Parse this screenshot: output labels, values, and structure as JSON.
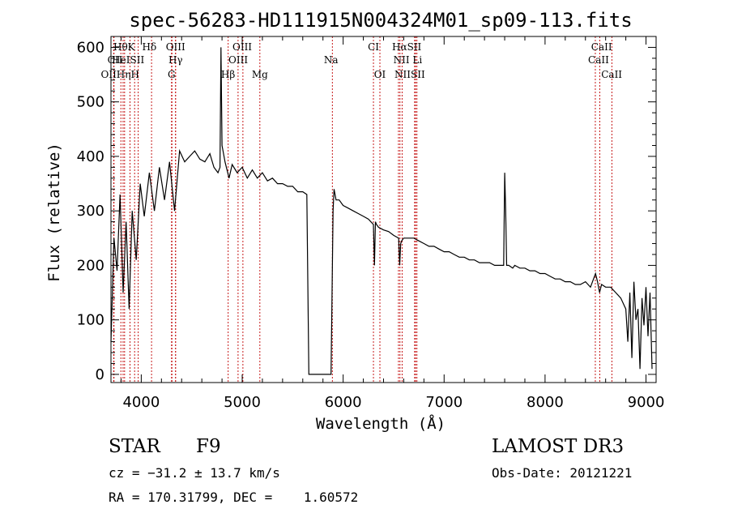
{
  "chart_data": {
    "type": "line",
    "title": "spec-56283-HD111915N004324M01_sp09-113.fits",
    "xlabel": "Wavelength (Å)",
    "ylabel": "Flux (relative)",
    "xlim": [
      3700,
      9100
    ],
    "ylim": [
      -15,
      620
    ],
    "xticks": [
      4000,
      5000,
      6000,
      7000,
      8000,
      9000
    ],
    "yticks": [
      0,
      100,
      200,
      300,
      400,
      500,
      600
    ],
    "series": [
      {
        "name": "flux",
        "x": [
          3700,
          3730,
          3760,
          3790,
          3820,
          3850,
          3880,
          3910,
          3950,
          3990,
          4030,
          4080,
          4130,
          4180,
          4230,
          4280,
          4330,
          4380,
          4430,
          4480,
          4530,
          4580,
          4630,
          4680,
          4720,
          4760,
          4780,
          4790,
          4800,
          4830,
          4870,
          4900,
          4950,
          5000,
          5050,
          5100,
          5150,
          5200,
          5250,
          5300,
          5350,
          5400,
          5450,
          5500,
          5550,
          5600,
          5640,
          5660,
          5670,
          5700,
          5800,
          5880,
          5900,
          5910,
          5930,
          5960,
          6000,
          6050,
          6100,
          6150,
          6200,
          6250,
          6300,
          6310,
          6320,
          6330,
          6350,
          6400,
          6450,
          6500,
          6550,
          6560,
          6570,
          6580,
          6600,
          6650,
          6700,
          6750,
          6800,
          6850,
          6900,
          6950,
          7000,
          7050,
          7100,
          7150,
          7200,
          7250,
          7300,
          7350,
          7400,
          7450,
          7500,
          7550,
          7590,
          7600,
          7610,
          7620,
          7640,
          7680,
          7700,
          7750,
          7800,
          7850,
          7900,
          7950,
          8000,
          8050,
          8100,
          8150,
          8200,
          8250,
          8300,
          8350,
          8400,
          8450,
          8500,
          8520,
          8540,
          8560,
          8600,
          8650,
          8700,
          8750,
          8800,
          8820,
          8840,
          8860,
          8880,
          8900,
          8920,
          8940,
          8960,
          8980,
          9000,
          9020,
          9040,
          9060
        ],
        "y": [
          60,
          250,
          190,
          330,
          150,
          280,
          120,
          300,
          210,
          350,
          290,
          370,
          300,
          380,
          320,
          390,
          300,
          410,
          390,
          400,
          410,
          395,
          390,
          405,
          380,
          370,
          380,
          600,
          420,
          390,
          360,
          385,
          370,
          380,
          360,
          375,
          360,
          370,
          355,
          360,
          350,
          350,
          345,
          345,
          335,
          335,
          330,
          0,
          0,
          0,
          0,
          0,
          300,
          340,
          320,
          320,
          310,
          305,
          300,
          295,
          290,
          285,
          275,
          200,
          280,
          275,
          270,
          265,
          262,
          255,
          250,
          200,
          240,
          245,
          250,
          250,
          250,
          245,
          240,
          235,
          235,
          230,
          225,
          225,
          220,
          215,
          215,
          210,
          210,
          205,
          205,
          205,
          200,
          200,
          200,
          370,
          300,
          200,
          200,
          195,
          200,
          195,
          195,
          190,
          190,
          185,
          185,
          180,
          175,
          175,
          170,
          170,
          165,
          165,
          170,
          160,
          185,
          170,
          150,
          165,
          160,
          160,
          150,
          140,
          120,
          60,
          150,
          30,
          170,
          100,
          120,
          10,
          140,
          90,
          160,
          70,
          150,
          10
        ]
      }
    ],
    "lines": [
      {
        "name": "CII",
        "x": 3730
      },
      {
        "name": "OII",
        "x": 3727
      },
      {
        "name": "Hθ",
        "x": 3798
      },
      {
        "name": "HeI",
        "x": 3820
      },
      {
        "name": "Hη",
        "x": 3835
      },
      {
        "name": "K",
        "x": 3889
      },
      {
        "name": "SII",
        "x": 3934
      },
      {
        "name": "H",
        "x": 3970
      },
      {
        "name": "Hδ",
        "x": 4102
      },
      {
        "name": "SII",
        "x": 4300
      },
      {
        "name": "OIII",
        "x": 4340
      },
      {
        "name": "Hγ",
        "x": 4340
      },
      {
        "name": "G",
        "x": 4304
      },
      {
        "name": "Hβ",
        "x": 4861
      },
      {
        "name": "OIII",
        "x": 4959
      },
      {
        "name": "OIII",
        "x": 5007
      },
      {
        "name": "Mg",
        "x": 5175
      },
      {
        "name": "Na",
        "x": 5893
      },
      {
        "name": "CI",
        "x": 6300
      },
      {
        "name": "OI",
        "x": 6364
      },
      {
        "name": "Hα",
        "x": 6563
      },
      {
        "name": "NII",
        "x": 6548
      },
      {
        "name": "NII",
        "x": 6584
      },
      {
        "name": "SII",
        "x": 6717
      },
      {
        "name": "Li",
        "x": 6708
      },
      {
        "name": "SII",
        "x": 6731
      },
      {
        "name": "CaII",
        "x": 8498
      },
      {
        "name": "CaII",
        "x": 8542
      },
      {
        "name": "CaII",
        "x": 8662
      }
    ],
    "line_labels": [
      {
        "text": "Hθ",
        "row": 1,
        "x": 3795
      },
      {
        "text": "K",
        "row": 1,
        "x": 3900
      },
      {
        "text": "Hδ",
        "row": 1,
        "x": 4080
      },
      {
        "text": "OIII",
        "row": 1,
        "x": 4340
      },
      {
        "text": "OIII",
        "row": 1,
        "x": 5000
      },
      {
        "text": "CI",
        "row": 1,
        "x": 6300
      },
      {
        "text": "HαSII",
        "row": 1,
        "x": 6630
      },
      {
        "text": "CaII",
        "row": 1,
        "x": 8560
      },
      {
        "text": "CII",
        "row": 2,
        "x": 3740
      },
      {
        "text": "HeISII",
        "row": 2,
        "x": 3870
      },
      {
        "text": "Hγ",
        "row": 2,
        "x": 4340
      },
      {
        "text": "OIII",
        "row": 2,
        "x": 4960
      },
      {
        "text": "Na",
        "row": 2,
        "x": 5880
      },
      {
        "text": "NII Li",
        "row": 2,
        "x": 6640
      },
      {
        "text": "CaII",
        "row": 2,
        "x": 8530
      },
      {
        "text": "OIIHηH",
        "row": 3,
        "x": 3790
      },
      {
        "text": "G",
        "row": 3,
        "x": 4300
      },
      {
        "text": "Hβ",
        "row": 3,
        "x": 4860
      },
      {
        "text": "Mg",
        "row": 3,
        "x": 5175
      },
      {
        "text": "OI",
        "row": 3,
        "x": 6364
      },
      {
        "text": "NIISII",
        "row": 3,
        "x": 6660
      },
      {
        "text": "CaII",
        "row": 3,
        "x": 8660
      }
    ]
  },
  "info": {
    "class": "STAR",
    "subclass": "F9",
    "survey": "LAMOST DR3",
    "cz": "cz = −31.2 ± 13.7 km/s",
    "obs_date": "Obs-Date: 20121221",
    "coords": "RA = 170.31799, DEC =    1.60572"
  }
}
